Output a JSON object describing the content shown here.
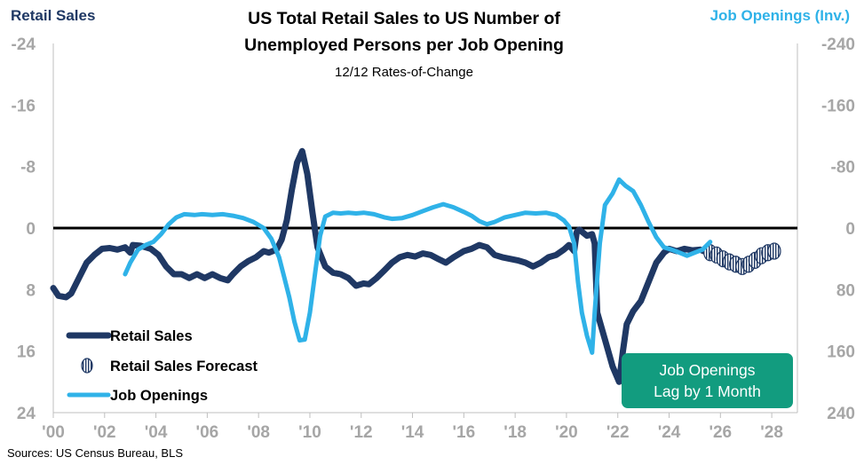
{
  "colors": {
    "retail": "#1f3864",
    "forecast": "#1f3864",
    "jobs": "#2fb2e8",
    "zero_line": "#000000",
    "axis_text": "#a6a6a6",
    "note_bg": "#129c7f"
  },
  "chart_data": {
    "type": "line",
    "title_line1": "US Total Retail Sales to US Number of",
    "title_line2": "Unemployed Persons per Job Opening",
    "subtitle": "12/12 Rates-of-Change",
    "left_axis_label": "Retail Sales",
    "right_axis_label": "Job Openings (Inv.)",
    "source": "Sources: US Census Bureau, BLS",
    "note_line1": "Job Openings",
    "note_line2": "Lag by 1 Month",
    "x_range": [
      2000,
      2029
    ],
    "x_ticks": [
      "'00",
      "'02",
      "'04",
      "'06",
      "'08",
      "'10",
      "'12",
      "'14",
      "'16",
      "'18",
      "'20",
      "'22",
      "'24",
      "'26",
      "'28"
    ],
    "y_left": {
      "range": [
        -24,
        24
      ],
      "ticks": [
        "24",
        "16",
        "8",
        "0",
        "-8",
        "-16",
        "-24"
      ]
    },
    "y_right": {
      "range": [
        240,
        -240
      ],
      "inverted": true,
      "ticks": [
        "-240",
        "-160",
        "-80",
        "0",
        "80",
        "160",
        "240"
      ]
    },
    "legend": {
      "placement": "bottom-left",
      "items": [
        {
          "name": "Retail Sales",
          "style": "solid-dark"
        },
        {
          "name": "Retail Sales Forecast",
          "style": "striped-markers"
        },
        {
          "name": "Job Openings",
          "style": "solid-light"
        }
      ]
    },
    "series": [
      {
        "name": "Retail Sales",
        "axis": "left",
        "points": [
          [
            2000.0,
            7.8
          ],
          [
            2000.2,
            8.8
          ],
          [
            2000.5,
            9.0
          ],
          [
            2000.7,
            8.5
          ],
          [
            2001.0,
            6.5
          ],
          [
            2001.3,
            4.5
          ],
          [
            2001.6,
            3.5
          ],
          [
            2001.9,
            2.7
          ],
          [
            2002.2,
            2.6
          ],
          [
            2002.5,
            2.8
          ],
          [
            2002.8,
            2.5
          ],
          [
            2003.0,
            3.2
          ],
          [
            2003.1,
            2.2
          ],
          [
            2003.4,
            2.3
          ],
          [
            2003.8,
            2.7
          ],
          [
            2004.1,
            3.5
          ],
          [
            2004.4,
            5.0
          ],
          [
            2004.7,
            6.0
          ],
          [
            2005.0,
            6.0
          ],
          [
            2005.3,
            6.5
          ],
          [
            2005.6,
            6.0
          ],
          [
            2005.9,
            6.5
          ],
          [
            2006.2,
            6.0
          ],
          [
            2006.5,
            6.5
          ],
          [
            2006.8,
            6.8
          ],
          [
            2007.0,
            6.0
          ],
          [
            2007.3,
            5.0
          ],
          [
            2007.6,
            4.3
          ],
          [
            2007.9,
            3.8
          ],
          [
            2008.2,
            3.0
          ],
          [
            2008.4,
            3.2
          ],
          [
            2008.7,
            2.8
          ],
          [
            2008.9,
            1.5
          ],
          [
            2009.1,
            -1.0
          ],
          [
            2009.3,
            -5.0
          ],
          [
            2009.5,
            -8.5
          ],
          [
            2009.7,
            -10.0
          ],
          [
            2009.9,
            -7.0
          ],
          [
            2010.1,
            -2.0
          ],
          [
            2010.3,
            2.5
          ],
          [
            2010.6,
            5.0
          ],
          [
            2010.9,
            5.8
          ],
          [
            2011.2,
            6.0
          ],
          [
            2011.5,
            6.5
          ],
          [
            2011.8,
            7.5
          ],
          [
            2012.1,
            7.2
          ],
          [
            2012.3,
            7.3
          ],
          [
            2012.6,
            6.5
          ],
          [
            2012.9,
            5.5
          ],
          [
            2013.2,
            4.5
          ],
          [
            2013.5,
            3.8
          ],
          [
            2013.8,
            3.5
          ],
          [
            2014.1,
            3.7
          ],
          [
            2014.4,
            3.3
          ],
          [
            2014.7,
            3.5
          ],
          [
            2015.0,
            4.0
          ],
          [
            2015.3,
            4.5
          ],
          [
            2015.6,
            3.8
          ],
          [
            2016.0,
            3.0
          ],
          [
            2016.3,
            2.7
          ],
          [
            2016.6,
            2.2
          ],
          [
            2016.9,
            2.5
          ],
          [
            2017.2,
            3.5
          ],
          [
            2017.5,
            3.8
          ],
          [
            2017.8,
            4.0
          ],
          [
            2018.1,
            4.2
          ],
          [
            2018.4,
            4.5
          ],
          [
            2018.7,
            5.0
          ],
          [
            2019.0,
            4.5
          ],
          [
            2019.3,
            3.8
          ],
          [
            2019.6,
            3.5
          ],
          [
            2019.9,
            2.8
          ],
          [
            2020.1,
            2.2
          ],
          [
            2020.3,
            3.0
          ],
          [
            2020.4,
            0.5
          ],
          [
            2020.5,
            0.2
          ],
          [
            2020.8,
            1.0
          ],
          [
            2021.0,
            0.8
          ],
          [
            2021.1,
            2.0
          ],
          [
            2021.2,
            11.0
          ],
          [
            2021.5,
            14.5
          ],
          [
            2021.8,
            18.0
          ],
          [
            2022.05,
            20.0
          ],
          [
            2022.2,
            16.0
          ],
          [
            2022.35,
            12.5
          ],
          [
            2022.6,
            10.8
          ],
          [
            2022.9,
            9.5
          ],
          [
            2023.2,
            7.0
          ],
          [
            2023.5,
            4.5
          ],
          [
            2023.8,
            3.2
          ],
          [
            2024.0,
            2.7
          ],
          [
            2024.3,
            3.0
          ],
          [
            2024.6,
            2.7
          ],
          [
            2024.9,
            2.9
          ],
          [
            2025.2,
            2.8
          ],
          [
            2025.5,
            3.2
          ]
        ]
      },
      {
        "name": "Retail Sales Forecast",
        "axis": "left",
        "points": [
          [
            2025.6,
            3.2
          ],
          [
            2025.85,
            3.5
          ],
          [
            2026.1,
            4.0
          ],
          [
            2026.35,
            4.4
          ],
          [
            2026.6,
            4.7
          ],
          [
            2026.85,
            5.0
          ],
          [
            2027.1,
            4.7
          ],
          [
            2027.35,
            4.2
          ],
          [
            2027.6,
            3.6
          ],
          [
            2027.85,
            3.2
          ],
          [
            2028.1,
            3.0
          ]
        ]
      },
      {
        "name": "Job Openings",
        "axis": "right",
        "points": [
          [
            2002.8,
            60
          ],
          [
            2003.0,
            45
          ],
          [
            2003.3,
            28
          ],
          [
            2003.6,
            22
          ],
          [
            2003.9,
            18
          ],
          [
            2004.2,
            8
          ],
          [
            2004.5,
            -5
          ],
          [
            2004.8,
            -14
          ],
          [
            2005.1,
            -18
          ],
          [
            2005.5,
            -17
          ],
          [
            2005.8,
            -18
          ],
          [
            2006.2,
            -17
          ],
          [
            2006.6,
            -18
          ],
          [
            2007.0,
            -16
          ],
          [
            2007.4,
            -13
          ],
          [
            2007.8,
            -8
          ],
          [
            2008.2,
            0
          ],
          [
            2008.5,
            14
          ],
          [
            2008.8,
            38
          ],
          [
            2009.0,
            64
          ],
          [
            2009.2,
            90
          ],
          [
            2009.4,
            122
          ],
          [
            2009.6,
            146
          ],
          [
            2009.8,
            145
          ],
          [
            2010.0,
            110
          ],
          [
            2010.2,
            60
          ],
          [
            2010.4,
            10
          ],
          [
            2010.6,
            -15
          ],
          [
            2010.9,
            -20
          ],
          [
            2011.2,
            -19
          ],
          [
            2011.5,
            -20
          ],
          [
            2011.8,
            -19
          ],
          [
            2012.1,
            -20
          ],
          [
            2012.5,
            -18
          ],
          [
            2012.9,
            -14
          ],
          [
            2013.2,
            -12
          ],
          [
            2013.6,
            -13
          ],
          [
            2014.0,
            -17
          ],
          [
            2014.4,
            -22
          ],
          [
            2014.8,
            -27
          ],
          [
            2015.2,
            -31
          ],
          [
            2015.6,
            -27
          ],
          [
            2016.0,
            -21
          ],
          [
            2016.3,
            -16
          ],
          [
            2016.6,
            -9
          ],
          [
            2016.9,
            -5
          ],
          [
            2017.2,
            -8
          ],
          [
            2017.6,
            -14
          ],
          [
            2018.0,
            -17
          ],
          [
            2018.4,
            -20
          ],
          [
            2018.8,
            -19
          ],
          [
            2019.2,
            -20
          ],
          [
            2019.6,
            -17
          ],
          [
            2019.9,
            -10
          ],
          [
            2020.1,
            -2
          ],
          [
            2020.3,
            20
          ],
          [
            2020.45,
            70
          ],
          [
            2020.6,
            110
          ],
          [
            2020.8,
            140
          ],
          [
            2021.0,
            162
          ],
          [
            2021.1,
            110
          ],
          [
            2021.3,
            20
          ],
          [
            2021.5,
            -30
          ],
          [
            2021.8,
            -45
          ],
          [
            2022.05,
            -63
          ],
          [
            2022.3,
            -55
          ],
          [
            2022.6,
            -48
          ],
          [
            2022.9,
            -30
          ],
          [
            2023.2,
            -8
          ],
          [
            2023.5,
            12
          ],
          [
            2023.8,
            25
          ],
          [
            2024.1,
            28
          ],
          [
            2024.4,
            32
          ],
          [
            2024.7,
            36
          ],
          [
            2025.0,
            32
          ],
          [
            2025.3,
            28
          ],
          [
            2025.6,
            18
          ]
        ]
      }
    ]
  }
}
